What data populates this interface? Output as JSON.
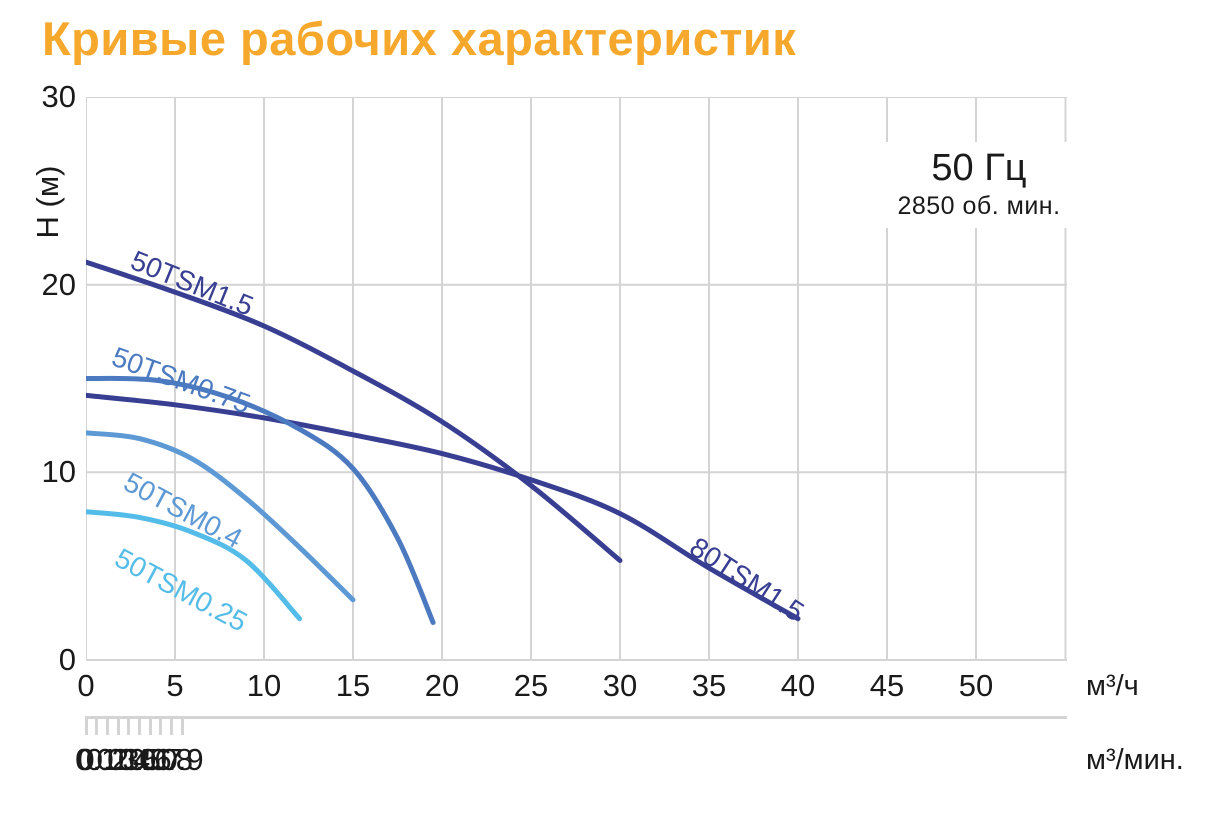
{
  "title": {
    "text": "Кривые рабочих характеристик",
    "color": "#f6a82c"
  },
  "annotation": {
    "line1": "50 Гц",
    "line2": "2850 об. мин."
  },
  "chart_data": {
    "type": "line",
    "title": "Кривые рабочих характеристик",
    "ylabel": "H (м)",
    "xlabel_primary": "м³/ч",
    "xlabel_secondary": "м³/мин.",
    "ylim": [
      0,
      30
    ],
    "xlim_primary": [
      0,
      55
    ],
    "grid": true,
    "grid_color": "#d4d4d4",
    "text_color": "#1a1a1a",
    "y_ticks": [
      0,
      10,
      20,
      30
    ],
    "x_primary_ticks": [
      0,
      5,
      10,
      15,
      20,
      25,
      30,
      35,
      40,
      45,
      50
    ],
    "x_secondary_ticks": [
      0,
      0.1,
      0.2,
      0.3,
      0.4,
      0.5,
      0.6,
      0.7,
      0.8,
      0.9
    ],
    "x_secondary_to_primary_factor": 6,
    "annotation": {
      "frequency": "50 Гц",
      "speed": "2850 об. мин."
    },
    "series": [
      {
        "name": "50TSM1.5",
        "color": "#383e92",
        "points": [
          [
            0,
            21.2
          ],
          [
            5,
            19.6
          ],
          [
            10,
            17.8
          ],
          [
            15,
            15.4
          ],
          [
            20,
            12.7
          ],
          [
            25,
            9.3
          ],
          [
            30,
            5.3
          ]
        ],
        "label": {
          "q": 2.4,
          "h": 20.9,
          "angle": 22
        }
      },
      {
        "name": "80TSM1.5",
        "color": "#383e92",
        "points": [
          [
            0,
            14.1
          ],
          [
            5,
            13.6
          ],
          [
            10,
            12.9
          ],
          [
            15,
            12.0
          ],
          [
            20,
            11.0
          ],
          [
            25,
            9.6
          ],
          [
            30,
            7.8
          ],
          [
            35,
            4.9
          ],
          [
            40,
            2.2
          ]
        ],
        "label": {
          "q": 33.8,
          "h": 5.75,
          "angle": 33
        }
      },
      {
        "name": "50TSM0.75",
        "color": "#4c7ac0",
        "points": [
          [
            0,
            15.0
          ],
          [
            4,
            14.9
          ],
          [
            8,
            14.0
          ],
          [
            12,
            12.3
          ],
          [
            15,
            10.2
          ],
          [
            17.5,
            6.5
          ],
          [
            19.5,
            2.0
          ]
        ],
        "label": {
          "q": 1.35,
          "h": 15.75,
          "angle": 20
        }
      },
      {
        "name": "50TSM0.4",
        "color": "#5d99d4",
        "points": [
          [
            0,
            12.1
          ],
          [
            3,
            11.8
          ],
          [
            6,
            10.7
          ],
          [
            9,
            8.6
          ],
          [
            12,
            6.0
          ],
          [
            15,
            3.2
          ]
        ],
        "label": {
          "q": 2.0,
          "h": 9.15,
          "angle": 28
        }
      },
      {
        "name": "50TSM0.25",
        "color": "#54bce8",
        "points": [
          [
            0,
            7.9
          ],
          [
            3,
            7.6
          ],
          [
            6,
            6.8
          ],
          [
            9,
            5.3
          ],
          [
            12,
            2.2
          ]
        ],
        "label": {
          "q": 1.5,
          "h": 5.1,
          "angle": 28
        }
      }
    ]
  }
}
